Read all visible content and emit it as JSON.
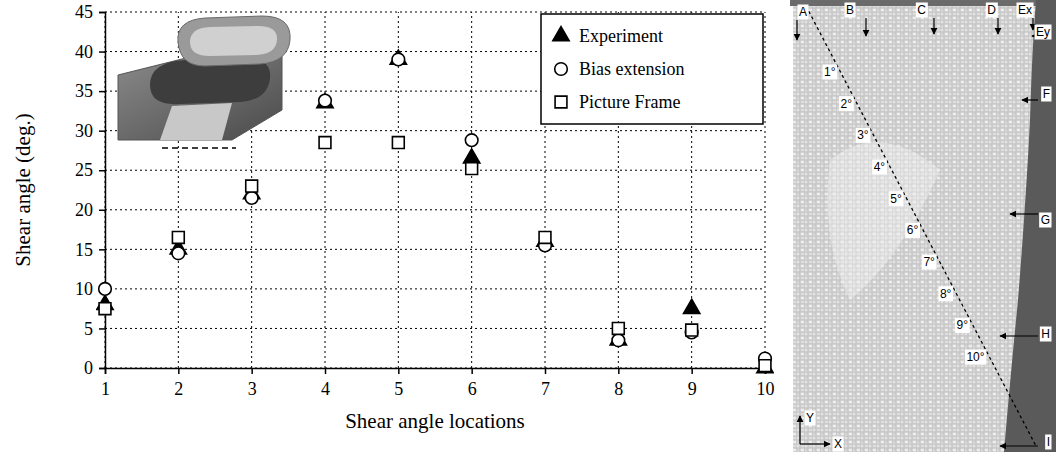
{
  "chart_data": {
    "type": "scatter",
    "x_label": "Shear angle locations",
    "y_label": "Shear angle (deg.)",
    "x": [
      1,
      2,
      3,
      4,
      5,
      6,
      7,
      8,
      9,
      10
    ],
    "series": [
      {
        "name": "Experiment",
        "color": "#000000",
        "marker": "filled-triangle",
        "values": [
          8,
          15,
          22,
          33.5,
          39,
          26.5,
          16,
          3.5,
          7.5,
          0
        ]
      },
      {
        "name": "Bias extension",
        "color": "#000000",
        "marker": "open-circle",
        "values": [
          10,
          14.5,
          21.5,
          33.8,
          39,
          28.8,
          15.5,
          3.5,
          4.5,
          1.2
        ]
      },
      {
        "name": "Picture Frame",
        "color": "#000000",
        "marker": "open-square",
        "values": [
          7.5,
          16.5,
          23,
          28.5,
          28.5,
          25.2,
          16.5,
          5,
          4.8,
          0.3
        ]
      }
    ],
    "xlim": [
      1,
      10
    ],
    "xticks": [
      1,
      2,
      3,
      4,
      5,
      6,
      7,
      8,
      9,
      10
    ],
    "ylim": [
      0,
      45
    ],
    "yticks": [
      0,
      5,
      10,
      15,
      20,
      25,
      30,
      35,
      40,
      45
    ],
    "grid": true,
    "legend": "upper right"
  },
  "photo": {
    "edge_labels": [
      "A",
      "B",
      "C",
      "D",
      "Ex",
      "Ey",
      "F",
      "G",
      "H",
      "I"
    ],
    "point_labels": [
      "1°",
      "2°",
      "3°",
      "4°",
      "5°",
      "6°",
      "7°",
      "8°",
      "9°",
      "10°"
    ],
    "axis_labels": [
      "X",
      "Y"
    ]
  }
}
